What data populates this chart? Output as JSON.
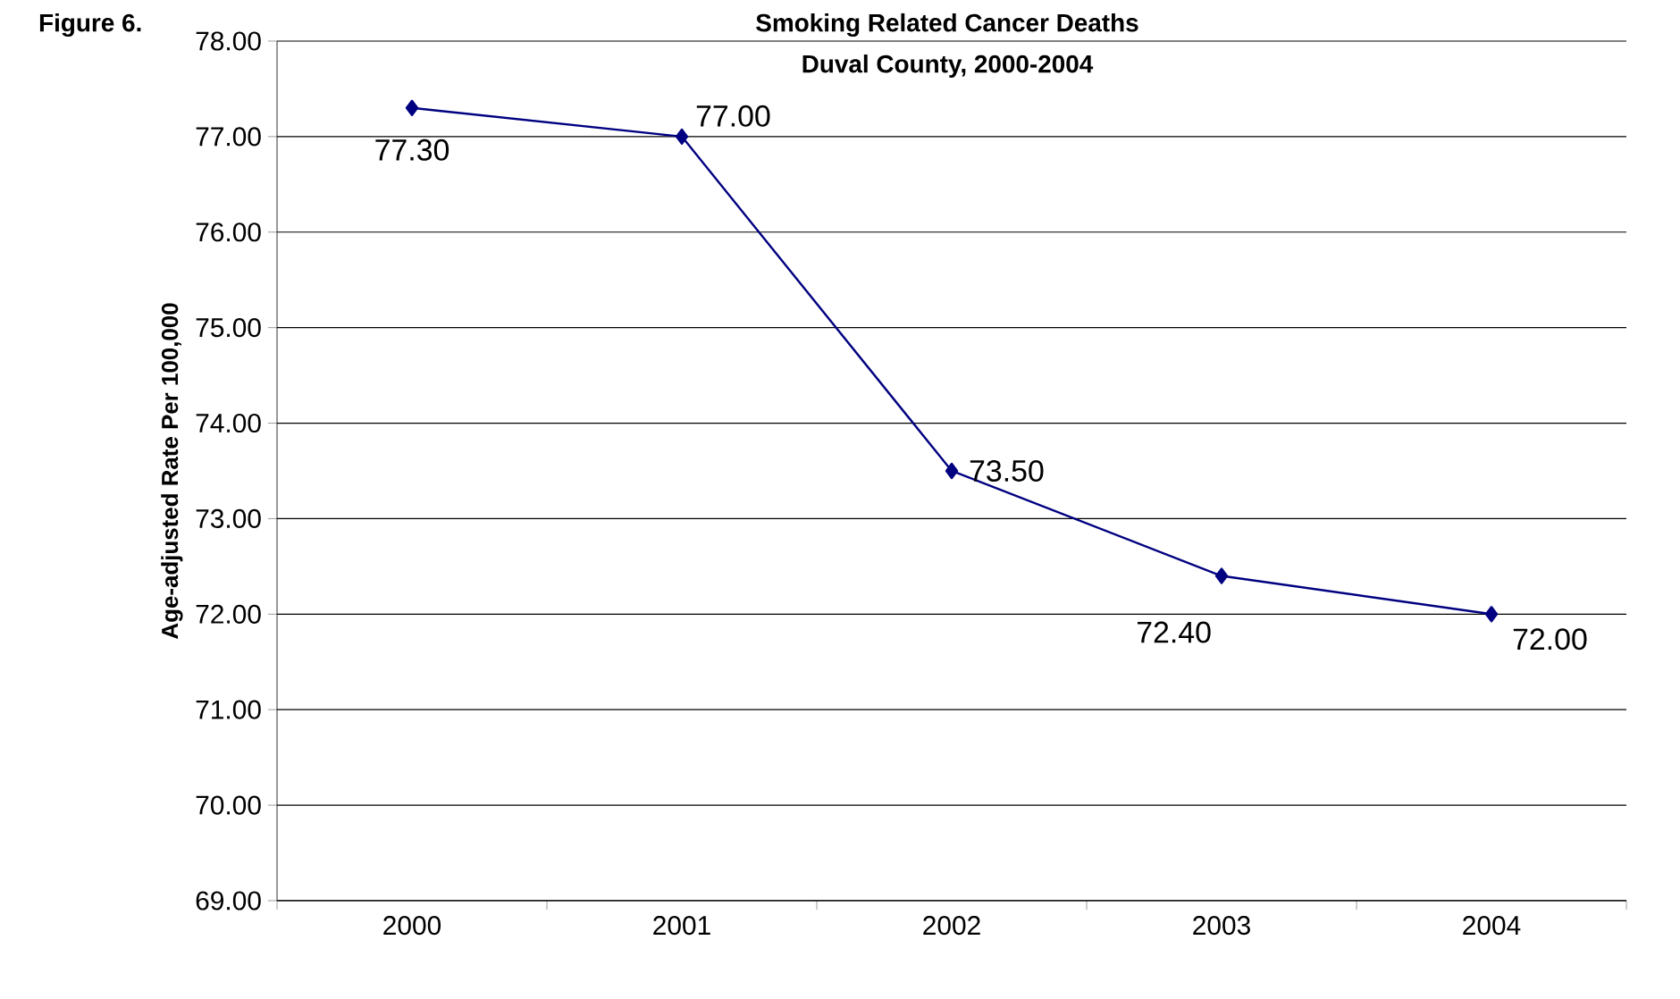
{
  "chart_data": {
    "type": "line",
    "title": "Smoking Related Cancer Deaths",
    "subtitle": "Duval County, 2000-2004",
    "annotations": [
      "Figure 6."
    ],
    "ylabel": "Age-adjusted Rate Per 100,000",
    "categories": [
      "2000",
      "2001",
      "2002",
      "2003",
      "2004"
    ],
    "series": [
      {
        "color": "#000080",
        "values": [
          77.3,
          77.0,
          73.5,
          72.4,
          72.0
        ],
        "value_labels": [
          "77.30",
          "77.00",
          "73.50",
          "72.40",
          "72.00"
        ]
      }
    ],
    "ylim": [
      69,
      78
    ],
    "yticks": [
      {
        "value": 69,
        "label": "69.00"
      },
      {
        "value": 70,
        "label": "70.00"
      },
      {
        "value": 71,
        "label": "71.00"
      },
      {
        "value": 72,
        "label": "72.00"
      },
      {
        "value": 73,
        "label": "73.00"
      },
      {
        "value": 74,
        "label": "74.00"
      },
      {
        "value": 75,
        "label": "75.00"
      },
      {
        "value": 76,
        "label": "76.00"
      },
      {
        "value": 77,
        "label": "77.00"
      },
      {
        "value": 78,
        "label": "78.00"
      }
    ],
    "grid": "y",
    "marker": "diamond",
    "line_style": "solid"
  }
}
